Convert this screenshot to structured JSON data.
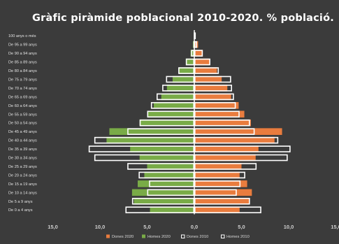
{
  "chart_data": {
    "type": "bar",
    "orientation": "horizontal-diverging",
    "title": "Gràfic piràmide poblacional 2010-2020. % població.",
    "categories": [
      "100 anys o més",
      "De 95 a 99 anys",
      "De 90 a 94 anys",
      "De 85 a 89 anys",
      "De 80 a 84 anys",
      "De 75 a 79 anys",
      "De 70 a 74 anys",
      "De 65 a 69 anys",
      "De 60 a 64 anys",
      "De 55 a 59 anys",
      "De 50 a 54 anys",
      "De 45 a 49 anys",
      "De 40 a 44 anys",
      "De 35 a 39 anys",
      "De 30 a 34 anys",
      "De 25 a 29 anys",
      "De 20 a 24 anys",
      "De 15 a 19 anys",
      "De 10 a 14 anys",
      "De 5 a 9 anys",
      "De 0 a 4 anys"
    ],
    "x_tick_labels": [
      "15,0",
      "10,0",
      "5,0",
      "0,0",
      "5,0",
      "10,0",
      "15,0"
    ],
    "x_ticks": [
      -15,
      -10,
      -5,
      0,
      5,
      10,
      15
    ],
    "xlim": [
      -15,
      15
    ],
    "series": [
      {
        "name": "Dones 2020",
        "side": "right",
        "style": "fill",
        "color": "#e97c3e",
        "values": [
          0.1,
          0.4,
          0.9,
          1.6,
          2.4,
          2.9,
          3.5,
          3.9,
          4.7,
          5.3,
          6.0,
          9.3,
          8.5,
          6.8,
          6.5,
          5.0,
          4.8,
          5.6,
          6.1,
          5.8,
          4.8
        ]
      },
      {
        "name": "Homes 2020",
        "side": "left",
        "style": "fill",
        "color": "#79ab47",
        "values": [
          0.05,
          0.15,
          0.4,
          0.9,
          1.6,
          2.3,
          2.9,
          3.5,
          4.3,
          5.0,
          5.8,
          9.0,
          9.3,
          6.8,
          5.8,
          5.0,
          5.3,
          6.0,
          6.6,
          6.4,
          4.7
        ]
      },
      {
        "name": "Dones 2010",
        "side": "right",
        "style": "outline",
        "color": "#ffffff",
        "values": [
          0.1,
          0.3,
          0.9,
          1.7,
          2.6,
          3.9,
          4.0,
          4.2,
          4.4,
          4.8,
          5.9,
          6.4,
          8.9,
          10.2,
          9.9,
          6.6,
          5.4,
          4.9,
          4.5,
          5.9,
          7.1
        ]
      },
      {
        "name": "Homes 2010",
        "side": "left",
        "style": "outline",
        "color": "#ffffff",
        "values": [
          0.05,
          0.1,
          0.35,
          0.9,
          1.7,
          3.0,
          3.4,
          4.0,
          4.6,
          5.0,
          5.8,
          7.1,
          10.6,
          11.2,
          10.6,
          7.1,
          5.9,
          4.8,
          5.0,
          6.6,
          7.3
        ]
      }
    ],
    "legend": {
      "position": "bottom",
      "entries": [
        "Dones 2020",
        "Homes 2020",
        "Dones 2010",
        "Homes 2010"
      ]
    },
    "grid": false,
    "colors": {
      "background": "#3b3b3b",
      "dones_2020": "#e97c3e",
      "homes_2020": "#79ab47",
      "outline": "#ffffff"
    }
  }
}
